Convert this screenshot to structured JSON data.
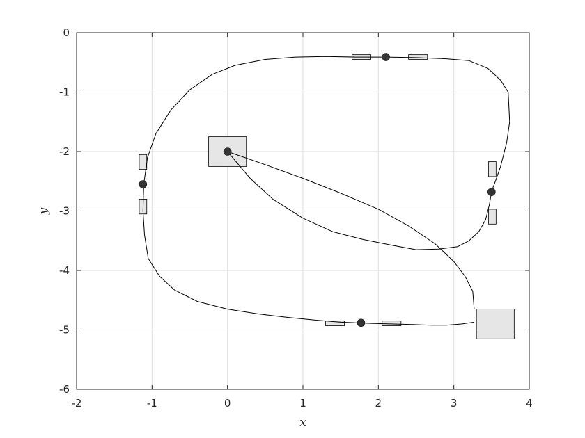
{
  "chart_data": {
    "type": "line",
    "title": "",
    "xlabel": "x",
    "ylabel": "y",
    "xlim": [
      -2,
      4
    ],
    "ylim": [
      -6,
      0
    ],
    "xticks": [
      -2,
      -1,
      0,
      1,
      2,
      3,
      4
    ],
    "yticks": [
      -6,
      -5,
      -4,
      -3,
      -2,
      -1,
      0
    ],
    "x_tick_labels": [
      "-2",
      "-1",
      "0",
      "1",
      "2",
      "3",
      "4"
    ],
    "y_tick_labels": [
      "-6",
      "-5",
      "-4",
      "-3",
      "-2",
      "-1",
      "0"
    ],
    "y_reversed": true,
    "grid": true,
    "colors": {
      "line": "#000000",
      "grid": "#dfdfdf",
      "axis": "#262626",
      "marker": "#333333",
      "box_fill": "#e6e6e6",
      "box_stroke": "#000000"
    },
    "series": [
      {
        "type": "line",
        "x": [
          3.27,
          3.1,
          2.9,
          2.7,
          2.45,
          2.2,
          1.9,
          1.7,
          1.5,
          1.2,
          0.8,
          0.4,
          0.0,
          -0.4,
          -0.7,
          -0.9,
          -1.05,
          -1.1,
          -1.12,
          -1.11,
          -1.06,
          -0.95,
          -0.75,
          -0.5,
          -0.2,
          0.1,
          0.5,
          0.9,
          1.3,
          1.7,
          2.1,
          2.5,
          2.9,
          3.2,
          3.45,
          3.62,
          3.72,
          3.74,
          3.7,
          3.62,
          3.55,
          3.52,
          3.5,
          3.47,
          3.42,
          3.33,
          3.2,
          3.05,
          2.8,
          2.5,
          2.2,
          1.8,
          1.4,
          1.0,
          0.6,
          0.3,
          0.0
        ],
        "y": [
          -4.87,
          -4.9,
          -4.92,
          -4.92,
          -4.91,
          -4.9,
          -4.89,
          -4.88,
          -4.87,
          -4.84,
          -4.79,
          -4.73,
          -4.65,
          -4.52,
          -4.33,
          -4.1,
          -3.8,
          -3.4,
          -3.0,
          -2.55,
          -2.1,
          -1.7,
          -1.3,
          -0.96,
          -0.7,
          -0.55,
          -0.45,
          -0.41,
          -0.4,
          -0.41,
          -0.41,
          -0.42,
          -0.44,
          -0.47,
          -0.6,
          -0.8,
          -1.0,
          -1.5,
          -1.85,
          -2.25,
          -2.5,
          -2.6,
          -2.68,
          -2.9,
          -3.15,
          -3.35,
          -3.5,
          -3.6,
          -3.64,
          -3.65,
          -3.58,
          -3.48,
          -3.35,
          -3.12,
          -2.8,
          -2.45,
          -2.0
        ]
      },
      {
        "type": "line",
        "x": [
          0.0,
          0.5,
          1.0,
          1.5,
          2.0,
          2.4,
          2.75,
          3.0,
          3.15,
          3.25,
          3.27
        ],
        "y": [
          -2.0,
          -2.22,
          -2.45,
          -2.7,
          -2.97,
          -3.25,
          -3.55,
          -3.85,
          -4.1,
          -4.35,
          -4.65
        ]
      },
      {
        "type": "scatter",
        "x": [
          2.1,
          3.5,
          1.77,
          -1.12,
          0.0
        ],
        "y": [
          -0.41,
          -2.68,
          -4.88,
          -2.55,
          -2.0
        ]
      }
    ],
    "boxes": [
      {
        "x": [
          -0.25,
          0.25
        ],
        "y": [
          -1.75,
          -2.25
        ]
      },
      {
        "x": [
          3.3,
          3.8
        ],
        "y": [
          -4.65,
          -5.15
        ]
      },
      {
        "x": [
          1.65,
          1.9
        ],
        "y": [
          -0.37,
          -0.45
        ]
      },
      {
        "x": [
          2.4,
          2.65
        ],
        "y": [
          -0.37,
          -0.45
        ]
      },
      {
        "x": [
          3.46,
          3.56
        ],
        "y": [
          -2.17,
          -2.42
        ]
      },
      {
        "x": [
          3.46,
          3.56
        ],
        "y": [
          -2.97,
          -3.22
        ]
      },
      {
        "x": [
          1.3,
          1.55
        ],
        "y": [
          -4.85,
          -4.93
        ]
      },
      {
        "x": [
          2.05,
          2.3
        ],
        "y": [
          -4.85,
          -4.93
        ]
      },
      {
        "x": [
          -1.17,
          -1.07
        ],
        "y": [
          -2.05,
          -2.3
        ]
      },
      {
        "x": [
          -1.17,
          -1.07
        ],
        "y": [
          -2.8,
          -3.05
        ]
      }
    ]
  }
}
